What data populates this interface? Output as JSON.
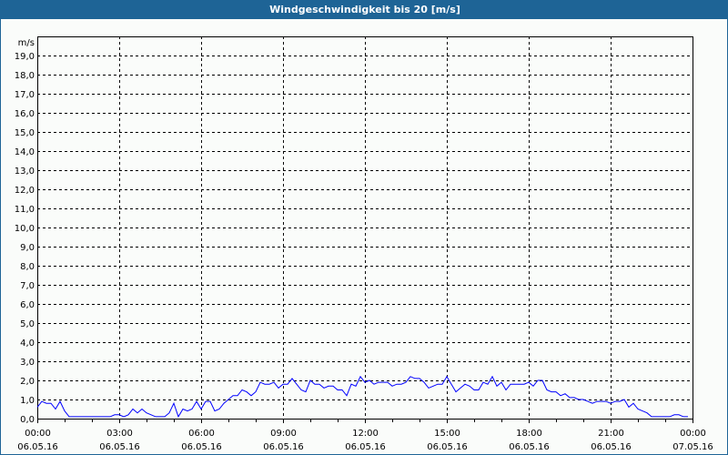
{
  "window": {
    "title": "Windgeschwindigkeit bis 20 [m/s]"
  },
  "chart_data": {
    "type": "line",
    "title": "Windgeschwindigkeit bis 20 [m/s]",
    "ylabel": "m/s",
    "ylim": [
      0,
      20
    ],
    "xlim": [
      "06.05.16 00:00",
      "07.05.16 00:00"
    ],
    "grid": true,
    "y_ticks": [
      "0,0",
      "1,0",
      "2,0",
      "3,0",
      "4,0",
      "5,0",
      "6,0",
      "7,0",
      "8,0",
      "9,0",
      "10,0",
      "11,0",
      "12,0",
      "13,0",
      "14,0",
      "15,0",
      "16,0",
      "17,0",
      "18,0",
      "19,0"
    ],
    "x_ticks": [
      {
        "time": "00:00",
        "date": "06.05.16"
      },
      {
        "time": "03:00",
        "date": "06.05.16"
      },
      {
        "time": "06:00",
        "date": "06.05.16"
      },
      {
        "time": "09:00",
        "date": "06.05.16"
      },
      {
        "time": "12:00",
        "date": "06.05.16"
      },
      {
        "time": "15:00",
        "date": "06.05.16"
      },
      {
        "time": "18:00",
        "date": "06.05.16"
      },
      {
        "time": "21:00",
        "date": "06.05.16"
      },
      {
        "time": "00:00",
        "date": "07.05.16"
      }
    ],
    "line_color": "#0000ff",
    "series": [
      {
        "points": [
          [
            "00:00",
            0.6
          ],
          [
            "00:10",
            0.9
          ],
          [
            "00:20",
            0.8
          ],
          [
            "00:30",
            0.8
          ],
          [
            "00:40",
            0.5
          ],
          [
            "00:50",
            0.9
          ],
          [
            "01:00",
            0.4
          ],
          [
            "01:10",
            0.1
          ],
          [
            "01:20",
            0.1
          ],
          [
            "01:30",
            0.1
          ],
          [
            "01:40",
            0.1
          ],
          [
            "01:50",
            0.1
          ],
          [
            "02:00",
            0.1
          ],
          [
            "02:10",
            0.1
          ],
          [
            "02:20",
            0.1
          ],
          [
            "02:30",
            0.1
          ],
          [
            "02:40",
            0.1
          ],
          [
            "02:50",
            0.2
          ],
          [
            "03:00",
            0.2
          ],
          [
            "03:10",
            0.1
          ],
          [
            "03:20",
            0.2
          ],
          [
            "03:30",
            0.5
          ],
          [
            "03:40",
            0.3
          ],
          [
            "03:50",
            0.5
          ],
          [
            "04:00",
            0.3
          ],
          [
            "04:10",
            0.2
          ],
          [
            "04:20",
            0.1
          ],
          [
            "04:30",
            0.1
          ],
          [
            "04:40",
            0.1
          ],
          [
            "04:50",
            0.3
          ],
          [
            "05:00",
            0.8
          ],
          [
            "05:10",
            0.1
          ],
          [
            "05:20",
            0.5
          ],
          [
            "05:30",
            0.4
          ],
          [
            "05:40",
            0.5
          ],
          [
            "05:50",
            0.9
          ],
          [
            "06:00",
            0.5
          ],
          [
            "06:10",
            0.9
          ],
          [
            "06:20",
            0.9
          ],
          [
            "06:30",
            0.4
          ],
          [
            "06:40",
            0.5
          ],
          [
            "06:50",
            0.8
          ],
          [
            "07:00",
            1.0
          ],
          [
            "07:10",
            1.2
          ],
          [
            "07:20",
            1.2
          ],
          [
            "07:30",
            1.5
          ],
          [
            "07:40",
            1.4
          ],
          [
            "07:50",
            1.2
          ],
          [
            "08:00",
            1.4
          ],
          [
            "08:10",
            1.9
          ],
          [
            "08:20",
            1.8
          ],
          [
            "08:30",
            1.8
          ],
          [
            "08:40",
            1.9
          ],
          [
            "08:50",
            1.6
          ],
          [
            "09:00",
            1.8
          ],
          [
            "09:10",
            1.8
          ],
          [
            "09:20",
            2.1
          ],
          [
            "09:30",
            1.8
          ],
          [
            "09:40",
            1.5
          ],
          [
            "09:50",
            1.4
          ],
          [
            "10:00",
            2.0
          ],
          [
            "10:10",
            1.8
          ],
          [
            "10:20",
            1.8
          ],
          [
            "10:30",
            1.6
          ],
          [
            "10:40",
            1.7
          ],
          [
            "10:50",
            1.7
          ],
          [
            "11:00",
            1.5
          ],
          [
            "11:10",
            1.5
          ],
          [
            "11:20",
            1.2
          ],
          [
            "11:30",
            1.8
          ],
          [
            "11:40",
            1.7
          ],
          [
            "11:50",
            2.2
          ],
          [
            "12:00",
            1.9
          ],
          [
            "12:10",
            2.0
          ],
          [
            "12:20",
            1.8
          ],
          [
            "12:30",
            1.9
          ],
          [
            "12:40",
            1.9
          ],
          [
            "12:50",
            1.9
          ],
          [
            "13:00",
            1.7
          ],
          [
            "13:10",
            1.8
          ],
          [
            "13:20",
            1.8
          ],
          [
            "13:30",
            1.9
          ],
          [
            "13:40",
            2.2
          ],
          [
            "13:50",
            2.1
          ],
          [
            "14:00",
            2.1
          ],
          [
            "14:10",
            1.9
          ],
          [
            "14:20",
            1.6
          ],
          [
            "14:30",
            1.7
          ],
          [
            "14:40",
            1.8
          ],
          [
            "14:50",
            1.8
          ],
          [
            "15:00",
            2.2
          ],
          [
            "15:10",
            1.8
          ],
          [
            "15:20",
            1.4
          ],
          [
            "15:30",
            1.6
          ],
          [
            "15:40",
            1.8
          ],
          [
            "15:50",
            1.7
          ],
          [
            "16:00",
            1.5
          ],
          [
            "16:10",
            1.5
          ],
          [
            "16:20",
            1.9
          ],
          [
            "16:30",
            1.8
          ],
          [
            "16:40",
            2.2
          ],
          [
            "16:50",
            1.7
          ],
          [
            "17:00",
            1.9
          ],
          [
            "17:10",
            1.5
          ],
          [
            "17:20",
            1.8
          ],
          [
            "17:30",
            1.8
          ],
          [
            "17:40",
            1.8
          ],
          [
            "17:50",
            1.8
          ],
          [
            "18:00",
            1.9
          ],
          [
            "18:10",
            1.7
          ],
          [
            "18:20",
            2.0
          ],
          [
            "18:30",
            2.0
          ],
          [
            "18:40",
            1.5
          ],
          [
            "18:50",
            1.4
          ],
          [
            "19:00",
            1.4
          ],
          [
            "19:10",
            1.2
          ],
          [
            "19:20",
            1.3
          ],
          [
            "19:30",
            1.1
          ],
          [
            "19:40",
            1.1
          ],
          [
            "19:50",
            1.0
          ],
          [
            "20:00",
            1.0
          ],
          [
            "20:10",
            0.9
          ],
          [
            "20:20",
            0.8
          ],
          [
            "20:30",
            0.9
          ],
          [
            "20:40",
            0.9
          ],
          [
            "20:50",
            0.9
          ],
          [
            "21:00",
            0.8
          ],
          [
            "21:10",
            0.9
          ],
          [
            "21:20",
            0.9
          ],
          [
            "21:30",
            1.0
          ],
          [
            "21:40",
            0.6
          ],
          [
            "21:50",
            0.8
          ],
          [
            "22:00",
            0.5
          ],
          [
            "22:10",
            0.4
          ],
          [
            "22:20",
            0.3
          ],
          [
            "22:30",
            0.1
          ],
          [
            "22:40",
            0.1
          ],
          [
            "22:50",
            0.1
          ],
          [
            "23:00",
            0.1
          ],
          [
            "23:10",
            0.1
          ],
          [
            "23:20",
            0.2
          ],
          [
            "23:30",
            0.2
          ],
          [
            "23:40",
            0.1
          ],
          [
            "23:50",
            0.1
          ]
        ]
      }
    ]
  }
}
